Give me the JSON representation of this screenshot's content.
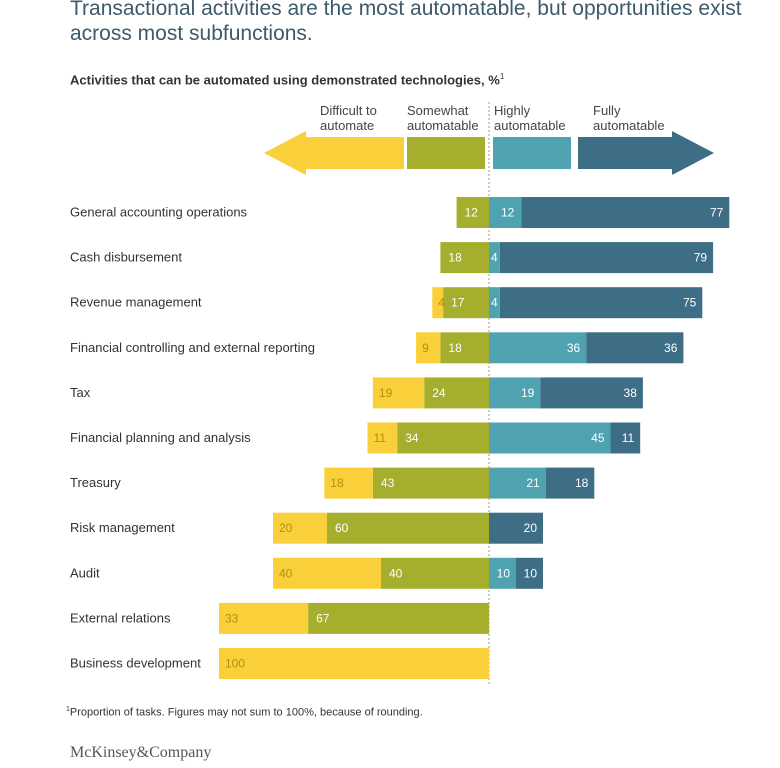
{
  "title": "Transactional activities are the most automatable, but opportunities exist across most subfunctions.",
  "subtitle": "Activities that can be automated using demonstrated technologies, %",
  "subtitle_sup": "1",
  "footnote_mark": "1",
  "footnote": "Proportion of tasks. Figures may not sum to 100%, because of rounding.",
  "brand": "McKinsey&Company",
  "chart_data": {
    "type": "bar",
    "orientation": "horizontal-diverging",
    "categories": [
      "General accounting operations",
      "Cash disbursement",
      "Revenue management",
      "Financial controlling and external reporting",
      "Tax",
      "Financial planning and analysis",
      "Treasury",
      "Risk management",
      "Audit",
      "External relations",
      "Business development"
    ],
    "series": [
      {
        "name": "Difficult to automate",
        "color": "#f9cf3a",
        "text_color": "#b58f12",
        "side": "left",
        "values": [
          0,
          0,
          4,
          9,
          19,
          11,
          18,
          20,
          40,
          33,
          100
        ]
      },
      {
        "name": "Somewhat automatable",
        "color": "#a6ae2e",
        "text_color": "#ffffff",
        "side": "left",
        "values": [
          12,
          18,
          17,
          18,
          24,
          34,
          43,
          60,
          40,
          67,
          0
        ]
      },
      {
        "name": "Highly automatable",
        "color": "#4fa3b1",
        "text_color": "#ffffff",
        "side": "right",
        "values": [
          12,
          4,
          4,
          36,
          19,
          45,
          21,
          0,
          10,
          0,
          0
        ]
      },
      {
        "name": "Fully automatable",
        "color": "#3e6d86",
        "text_color": "#ffffff",
        "side": "right",
        "values": [
          77,
          79,
          75,
          36,
          38,
          11,
          18,
          20,
          10,
          0,
          0
        ]
      }
    ],
    "legend_labels": [
      [
        "Difficult to",
        "automate"
      ],
      [
        "Somewhat",
        "automatable"
      ],
      [
        "Highly",
        "automatable"
      ],
      [
        "Fully",
        "automatable"
      ]
    ],
    "legend": "top",
    "grid": false
  }
}
